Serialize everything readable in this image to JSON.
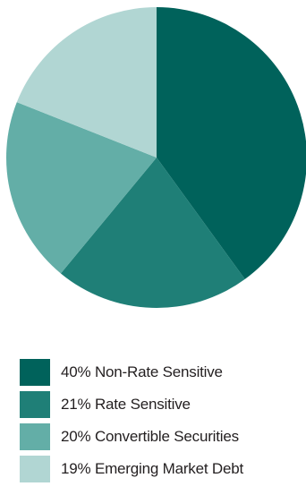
{
  "chart_data": {
    "type": "pie",
    "title": "",
    "start_angle_deg": 0,
    "direction": "clockwise",
    "slices": [
      {
        "label": "40% Non-Rate Sensitive",
        "value": 40,
        "color": "#00625b"
      },
      {
        "label": "21% Rate Sensitive",
        "value": 21,
        "color": "#1f7f77"
      },
      {
        "label": "20% Convertible Securities",
        "value": 20,
        "color": "#63aea7"
      },
      {
        "label": "19% Emerging Market Debt",
        "value": 19,
        "color": "#b1d6d3"
      }
    ],
    "legend": {
      "placement": "bottom"
    }
  }
}
